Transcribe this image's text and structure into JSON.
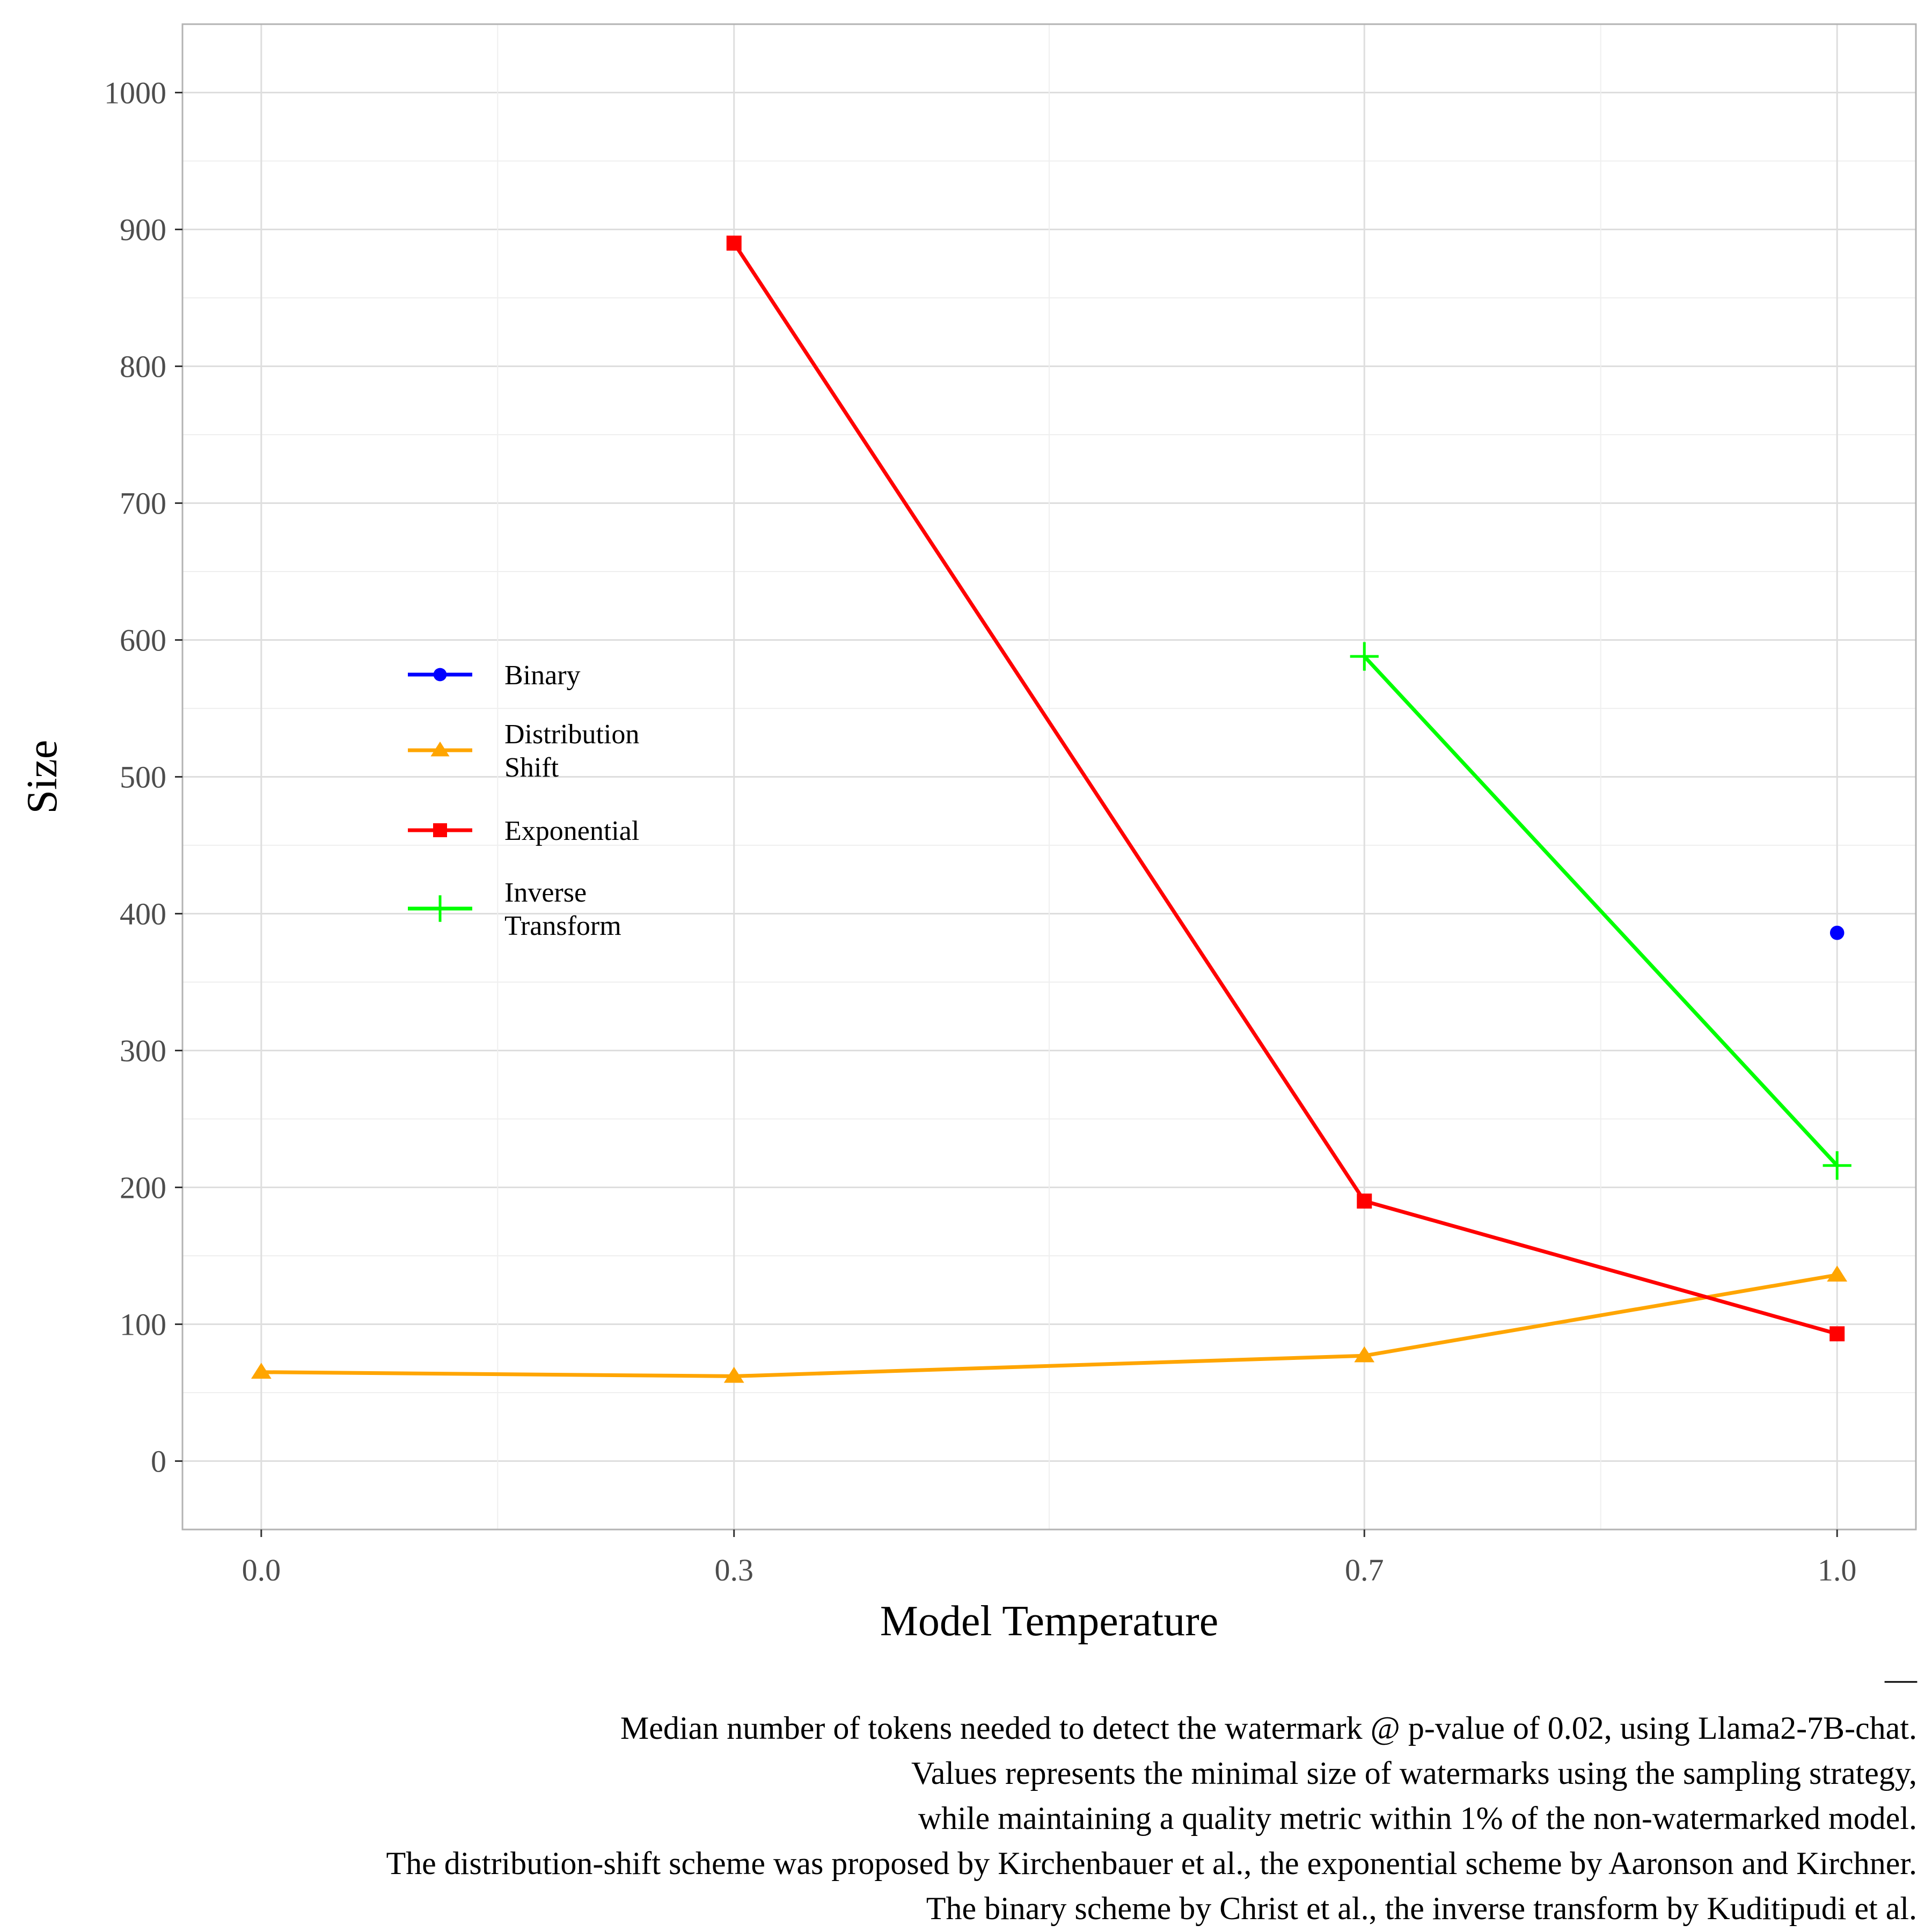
{
  "chart_data": {
    "type": "line",
    "title": "",
    "xlabel": "Model Temperature",
    "ylabel": "Size",
    "x_categories": [
      "0.0",
      "0.3",
      "0.7",
      "1.0"
    ],
    "x": [
      0.0,
      0.3,
      0.7,
      1.0
    ],
    "xlim": [
      -0.05,
      1.05
    ],
    "ylim": [
      -50,
      1050
    ],
    "y_ticks": [
      0,
      100,
      200,
      300,
      400,
      500,
      600,
      700,
      800,
      900,
      1000
    ],
    "y_tick_labels": [
      "0",
      "100",
      "200",
      "300",
      "400",
      "500",
      "600",
      "700",
      "800",
      "900",
      "1000"
    ],
    "grid": true,
    "legend_position": "inside-left",
    "series": [
      {
        "name": "Binary",
        "color": "#0000ff",
        "marker": "circle",
        "points": [
          {
            "x": 1.0,
            "y": 386
          }
        ]
      },
      {
        "name": "Distribution Shift",
        "name_lines": [
          "Distribution",
          "Shift"
        ],
        "color": "#ffa500",
        "marker": "triangle",
        "points": [
          {
            "x": 0.0,
            "y": 65
          },
          {
            "x": 0.3,
            "y": 62
          },
          {
            "x": 0.7,
            "y": 77
          },
          {
            "x": 1.0,
            "y": 136
          }
        ]
      },
      {
        "name": "Exponential",
        "color": "#ff0000",
        "marker": "square",
        "points": [
          {
            "x": 0.3,
            "y": 890
          },
          {
            "x": 0.7,
            "y": 190
          },
          {
            "x": 1.0,
            "y": 93
          }
        ]
      },
      {
        "name": "Inverse Transform",
        "name_lines": [
          "Inverse",
          "Transform"
        ],
        "color": "#00ff00",
        "marker": "plus",
        "points": [
          {
            "x": 0.7,
            "y": 588
          },
          {
            "x": 1.0,
            "y": 216
          }
        ]
      }
    ],
    "caption_mark": "—",
    "caption": [
      "Median number of tokens needed to detect the watermark @ p-value of 0.02, using Llama2-7B-chat.",
      "Values represents the minimal size of watermarks using the sampling strategy,",
      "while maintaining a quality metric within 1% of the non-watermarked model.",
      "The distribution-shift scheme was proposed by Kirchenbauer et al., the exponential scheme by Aaronson and Kirchner.",
      "The binary scheme by Christ et al., the inverse transform by Kuditipudi et al."
    ]
  }
}
